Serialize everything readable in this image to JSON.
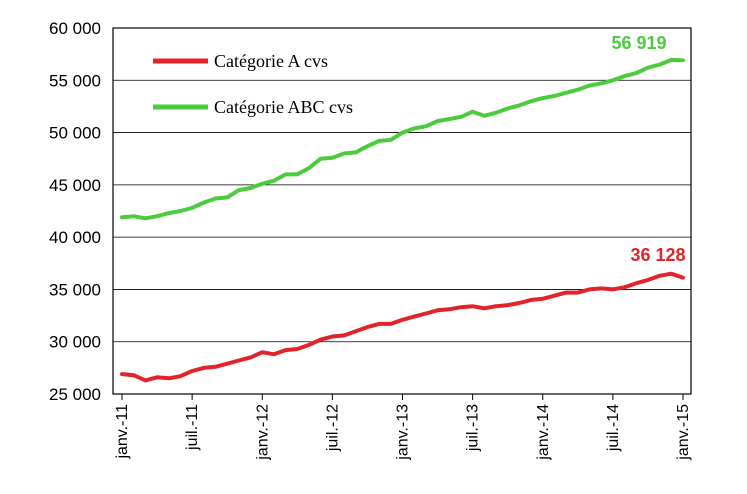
{
  "chart_data": {
    "type": "line",
    "title": "",
    "xlabel": "",
    "ylabel": "",
    "ylim": [
      25000,
      60000
    ],
    "yticks": [
      "25 000",
      "30 000",
      "35 000",
      "40 000",
      "45 000",
      "50 000",
      "55 000",
      "60 000"
    ],
    "ytick_values": [
      25000,
      30000,
      35000,
      40000,
      45000,
      50000,
      55000,
      60000
    ],
    "xticks": [
      "janv.-11",
      "juil.-11",
      "janv.-12",
      "juil.-12",
      "janv.-13",
      "juil.-13",
      "janv.-14",
      "juil.-14",
      "janv.-15"
    ],
    "x_months": [
      "janv.-11",
      "févr.-11",
      "mars-11",
      "avr.-11",
      "mai-11",
      "juin-11",
      "juil.-11",
      "août-11",
      "sept.-11",
      "oct.-11",
      "nov.-11",
      "déc.-11",
      "janv.-12",
      "févr.-12",
      "mars-12",
      "avr.-12",
      "mai-12",
      "juin-12",
      "juil.-12",
      "août-12",
      "sept.-12",
      "oct.-12",
      "nov.-12",
      "déc.-12",
      "janv.-13",
      "févr.-13",
      "mars-13",
      "avr.-13",
      "mai-13",
      "juin-13",
      "juil.-13",
      "août-13",
      "sept.-13",
      "oct.-13",
      "nov.-13",
      "déc.-13",
      "janv.-14",
      "févr.-14",
      "mars-14",
      "avr.-14",
      "mai-14",
      "juin-14",
      "juil.-14",
      "août-14",
      "sept.-14",
      "oct.-14",
      "nov.-14",
      "déc.-14",
      "janv.-15"
    ],
    "grid": true,
    "legend_position": "top-left",
    "series": [
      {
        "name": "Catégorie A cvs",
        "color": "#e3232b",
        "end_label": "36 128",
        "values": [
          26900,
          26800,
          26300,
          26600,
          26500,
          26700,
          27200,
          27500,
          27600,
          27900,
          28200,
          28500,
          29000,
          28800,
          29200,
          29300,
          29700,
          30200,
          30500,
          30600,
          31000,
          31400,
          31700,
          31700,
          32100,
          32400,
          32700,
          33000,
          33100,
          33300,
          33400,
          33200,
          33400,
          33500,
          33700,
          34000,
          34100,
          34400,
          34700,
          34700,
          35000,
          35100,
          35000,
          35200,
          35600,
          35900,
          36300,
          36500,
          36128
        ]
      },
      {
        "name": "Catégorie ABC cvs",
        "color": "#4ccc3c",
        "end_label": "56 919",
        "values": [
          41900,
          42000,
          41800,
          42000,
          42300,
          42500,
          42800,
          43300,
          43700,
          43800,
          44500,
          44700,
          45100,
          45400,
          46000,
          46000,
          46600,
          47500,
          47600,
          48000,
          48100,
          48700,
          49200,
          49300,
          50000,
          50400,
          50600,
          51100,
          51300,
          51500,
          52000,
          51600,
          51900,
          52300,
          52600,
          53000,
          53300,
          53500,
          53800,
          54100,
          54500,
          54700,
          55000,
          55400,
          55700,
          56200,
          56500,
          56950,
          56919
        ]
      }
    ]
  }
}
